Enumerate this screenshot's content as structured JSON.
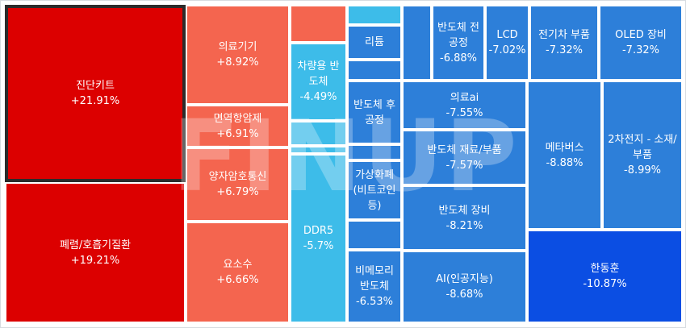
{
  "watermark": "FINUP",
  "colors": {
    "strong_up": "#dc0000",
    "up": "#f4654f",
    "down_light": "#3dbce9",
    "down": "#2d7fd9",
    "strong_down": "#0b4ee3"
  },
  "chart_data": {
    "type": "treemap",
    "unit": "%",
    "items": [
      {
        "name": "진단키트",
        "change": "+21.91%",
        "value": 21.91,
        "selected": true
      },
      {
        "name": "폐렴/호흡기질환",
        "change": "+19.21%",
        "value": 19.21
      },
      {
        "name": "의료기기",
        "change": "+8.92%",
        "value": 8.92
      },
      {
        "name": "",
        "change": "",
        "value": null
      },
      {
        "name": "면역항암제",
        "change": "+6.91%",
        "value": 6.91
      },
      {
        "name": "양자암호통신",
        "change": "+6.79%",
        "value": 6.79
      },
      {
        "name": "요소수",
        "change": "+6.66%",
        "value": 6.66
      },
      {
        "name": "차량용 반도체",
        "change": "-4.49%",
        "value": -4.49
      },
      {
        "name": "",
        "change": "",
        "value": null
      },
      {
        "name": "",
        "change": "",
        "value": null
      },
      {
        "name": "DDR5",
        "change": "-5.7%",
        "value": -5.7
      },
      {
        "name": "",
        "change": "",
        "value": null
      },
      {
        "name": "리튬",
        "change": "",
        "value": null
      },
      {
        "name": "",
        "change": "",
        "value": null
      },
      {
        "name": "반도체 후공정",
        "change": "",
        "value": null
      },
      {
        "name": "",
        "change": "",
        "value": null
      },
      {
        "name": "가상화폐 (비트코인 등)",
        "change": "",
        "value": null
      },
      {
        "name": "",
        "change": "",
        "value": null
      },
      {
        "name": "비메모리 반도체",
        "change": "-6.53%",
        "value": -6.53
      },
      {
        "name": "",
        "change": "",
        "value": null
      },
      {
        "name": "반도체 전공정",
        "change": "-6.88%",
        "value": -6.88
      },
      {
        "name": "LCD",
        "change": "-7.02%",
        "value": -7.02
      },
      {
        "name": "전기차 부품",
        "change": "-7.32%",
        "value": -7.32
      },
      {
        "name": "OLED 장비",
        "change": "-7.32%",
        "value": -7.32
      },
      {
        "name": "의료ai",
        "change": "-7.55%",
        "value": -7.55
      },
      {
        "name": "반도체 재료/부품",
        "change": "-7.57%",
        "value": -7.57
      },
      {
        "name": "반도체 장비",
        "change": "-8.21%",
        "value": -8.21
      },
      {
        "name": "AI(인공지능)",
        "change": "-8.68%",
        "value": -8.68
      },
      {
        "name": "메타버스",
        "change": "-8.88%",
        "value": -8.88
      },
      {
        "name": "2차전지 - 소재/부품",
        "change": "-8.99%",
        "value": -8.99
      },
      {
        "name": "한동훈",
        "change": "-10.87%",
        "value": -10.87
      }
    ]
  }
}
